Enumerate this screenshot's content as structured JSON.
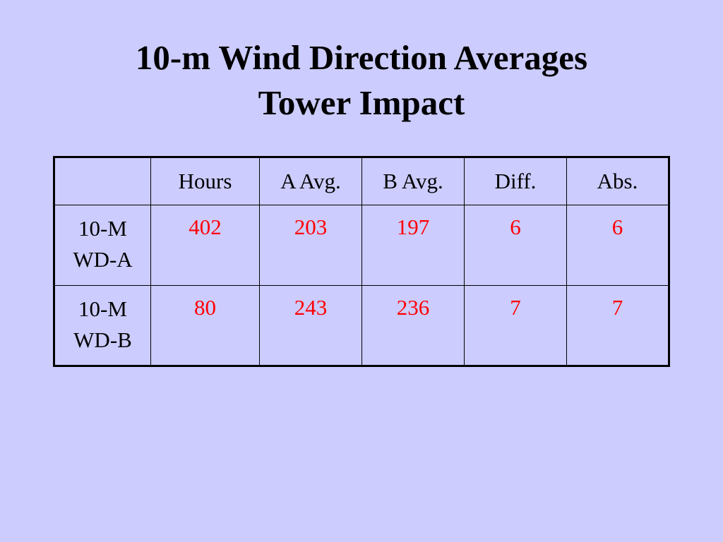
{
  "slide": {
    "title_line1": "10-m Wind Direction Averages",
    "title_line2": "Tower Impact"
  },
  "colors": {
    "background": "#ccccff",
    "value_text": "#ff0000",
    "label_text": "#000000"
  },
  "table": {
    "headers": [
      "",
      "Hours",
      "A Avg.",
      "B Avg.",
      "Diff.",
      "Abs."
    ],
    "rows": [
      {
        "label_line1": "10-M",
        "label_line2": "WD-A",
        "values": [
          "402",
          "203",
          "197",
          "6",
          "6"
        ]
      },
      {
        "label_line1": "10-M",
        "label_line2": "WD-B",
        "values": [
          "80",
          "243",
          "236",
          "7",
          "7"
        ]
      }
    ]
  }
}
